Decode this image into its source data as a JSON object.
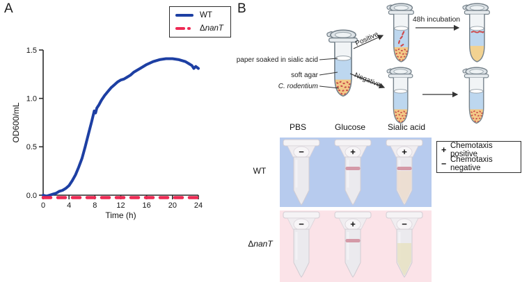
{
  "figure": {
    "panel_a_label": "A",
    "panel_b_label": "B"
  },
  "chart_data": {
    "type": "line",
    "title": "",
    "xlabel": "Time (h)",
    "ylabel": "OD600/mL",
    "xlim": [
      0,
      24
    ],
    "ylim": [
      0,
      1.5
    ],
    "xticks": [
      "0",
      "4",
      "8",
      "12",
      "16",
      "20",
      "24"
    ],
    "yticks": [
      "0.0",
      "0.5",
      "1.0",
      "1.5"
    ],
    "grid": false,
    "legend_position": "top-right",
    "series": [
      {
        "name": "WT",
        "color": "#1d3fa3",
        "style": "solid",
        "x": [
          0,
          0.5,
          1,
          1.5,
          2,
          2.5,
          3,
          3.5,
          4,
          4.5,
          5,
          5.5,
          6,
          6.5,
          7,
          7.5,
          7.9,
          8.1,
          8.3,
          8.6,
          9,
          9.5,
          10,
          10.5,
          11,
          11.5,
          12,
          12.5,
          13,
          13.5,
          14,
          15,
          16,
          17,
          18,
          19,
          20,
          21,
          22,
          22.5,
          23,
          23.3,
          23.6,
          24
        ],
        "y": [
          0.0,
          -0.01,
          0.0,
          0.01,
          0.02,
          0.04,
          0.05,
          0.07,
          0.1,
          0.15,
          0.21,
          0.29,
          0.38,
          0.5,
          0.63,
          0.76,
          0.87,
          0.85,
          0.9,
          0.93,
          0.98,
          1.03,
          1.07,
          1.11,
          1.14,
          1.17,
          1.19,
          1.2,
          1.22,
          1.24,
          1.27,
          1.31,
          1.35,
          1.38,
          1.4,
          1.41,
          1.41,
          1.4,
          1.38,
          1.36,
          1.34,
          1.31,
          1.33,
          1.31
        ]
      },
      {
        "name": "ΔnanT",
        "color": "#ee2a54",
        "style": "dashed",
        "x": [
          0,
          24
        ],
        "y": [
          -0.025,
          -0.025
        ]
      }
    ]
  },
  "legend_a": {
    "wt_label": "WT",
    "mutant_delta": "Δ",
    "mutant_gene": "nanT"
  },
  "diagram": {
    "labels": {
      "paper": "paper soaked in sialic acid",
      "agar": "soft agar",
      "bacteria": "C. rodentium"
    },
    "positive": "Positive",
    "negative": "Negative",
    "incubation": "48h incubation"
  },
  "assay": {
    "columns": [
      "PBS",
      "Glucose",
      "Sialic acid"
    ],
    "row_wt": {
      "label": "WT"
    },
    "row_mut": {
      "delta": "Δ",
      "gene": "nanT"
    },
    "colors": {
      "wt_bg": "#b7cbee",
      "mut_bg": "#fbe3e8",
      "band": "#d1909f"
    },
    "tubes": [
      {
        "row": 0,
        "col": 0,
        "sign": "−",
        "band": false,
        "tint": null
      },
      {
        "row": 0,
        "col": 1,
        "sign": "+",
        "band": true,
        "tint": null
      },
      {
        "row": 0,
        "col": 2,
        "sign": "+",
        "band": true,
        "tint": "#ecdccc"
      },
      {
        "row": 1,
        "col": 0,
        "sign": "−",
        "band": false,
        "tint": null
      },
      {
        "row": 1,
        "col": 1,
        "sign": "+",
        "band": true,
        "tint": null
      },
      {
        "row": 1,
        "col": 2,
        "sign": "−",
        "band": false,
        "tint": "#e8e2c2"
      }
    ],
    "legend": [
      {
        "symbol": "+",
        "label": "Chemotaxis positive"
      },
      {
        "symbol": "−",
        "label": "Chemotaxis negative"
      }
    ]
  }
}
